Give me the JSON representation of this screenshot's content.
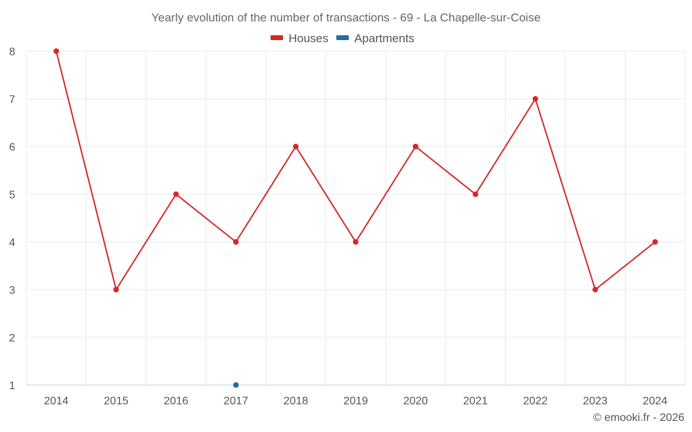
{
  "chart_data": {
    "type": "line",
    "title": "Yearly evolution of the number of transactions - 69 - La Chapelle-sur-Coise",
    "categories": [
      "2014",
      "2015",
      "2016",
      "2017",
      "2018",
      "2019",
      "2020",
      "2021",
      "2022",
      "2023",
      "2024"
    ],
    "series": [
      {
        "name": "Houses",
        "color": "#d62728",
        "values": [
          8,
          3,
          5,
          4,
          6,
          4,
          6,
          5,
          7,
          3,
          4
        ]
      },
      {
        "name": "Apartments",
        "color": "#1f6fa5",
        "values": [
          null,
          null,
          null,
          1,
          null,
          null,
          null,
          null,
          null,
          null,
          null
        ]
      }
    ],
    "yticks": [
      1,
      2,
      3,
      4,
      5,
      6,
      7,
      8
    ],
    "ylim": [
      1,
      8
    ],
    "grid": true,
    "legend": "top-center",
    "xlabel": "",
    "ylabel": ""
  },
  "credit": "© emooki.fr - 2026"
}
